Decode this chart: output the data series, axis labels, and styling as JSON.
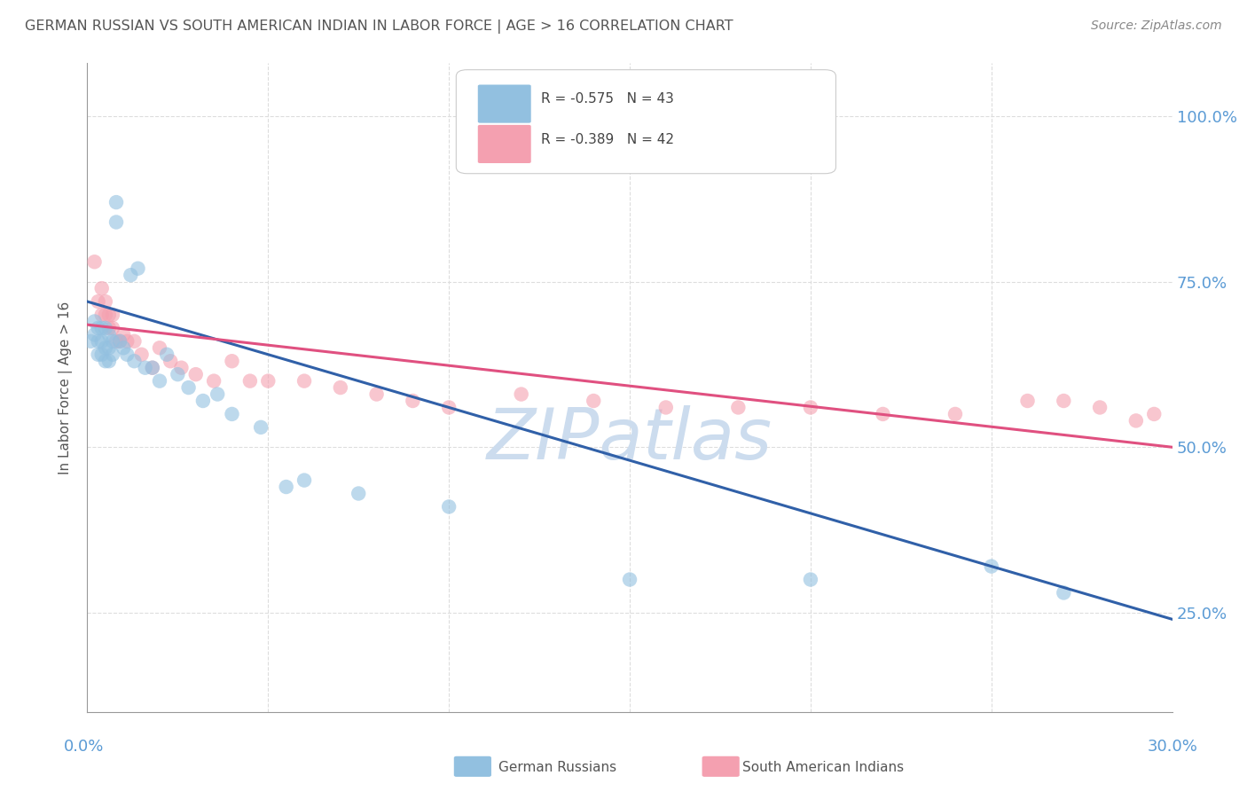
{
  "title": "GERMAN RUSSIAN VS SOUTH AMERICAN INDIAN IN LABOR FORCE | AGE > 16 CORRELATION CHART",
  "source_text": "Source: ZipAtlas.com",
  "ylabel": "In Labor Force | Age > 16",
  "legend_label_blue": "R = -0.575   N = 43",
  "legend_label_pink": "R = -0.389   N = 42",
  "legend_label_blue_box": "German Russians",
  "legend_label_pink_box": "South American Indians",
  "blue_color": "#92c0e0",
  "pink_color": "#f4a0b0",
  "blue_line_color": "#3060a8",
  "pink_line_color": "#e05080",
  "title_color": "#555555",
  "axis_color": "#999999",
  "grid_color": "#dddddd",
  "watermark_color": "#ccdcee",
  "right_tick_color": "#5b9bd5",
  "xlim": [
    0.0,
    0.3
  ],
  "ylim": [
    0.1,
    1.08
  ],
  "yticks": [
    0.25,
    0.5,
    0.75,
    1.0
  ],
  "ytick_labels": [
    "25.0%",
    "50.0%",
    "75.0%",
    "100.0%"
  ],
  "xtick_left_label": "0.0%",
  "xtick_right_label": "30.0%",
  "blue_line_x": [
    0.0,
    0.3
  ],
  "blue_line_y": [
    0.72,
    0.24
  ],
  "pink_line_x": [
    0.0,
    0.3
  ],
  "pink_line_y": [
    0.685,
    0.5
  ],
  "blue_scatter_x": [
    0.001,
    0.002,
    0.002,
    0.003,
    0.003,
    0.003,
    0.004,
    0.004,
    0.004,
    0.005,
    0.005,
    0.005,
    0.006,
    0.006,
    0.006,
    0.007,
    0.007,
    0.008,
    0.008,
    0.009,
    0.01,
    0.011,
    0.012,
    0.013,
    0.014,
    0.016,
    0.018,
    0.02,
    0.022,
    0.025,
    0.028,
    0.032,
    0.036,
    0.04,
    0.048,
    0.055,
    0.06,
    0.075,
    0.1,
    0.15,
    0.2,
    0.25,
    0.27
  ],
  "blue_scatter_y": [
    0.66,
    0.69,
    0.67,
    0.68,
    0.66,
    0.64,
    0.68,
    0.66,
    0.64,
    0.68,
    0.65,
    0.63,
    0.67,
    0.65,
    0.63,
    0.66,
    0.64,
    0.87,
    0.84,
    0.66,
    0.65,
    0.64,
    0.76,
    0.63,
    0.77,
    0.62,
    0.62,
    0.6,
    0.64,
    0.61,
    0.59,
    0.57,
    0.58,
    0.55,
    0.53,
    0.44,
    0.45,
    0.43,
    0.41,
    0.3,
    0.3,
    0.32,
    0.28
  ],
  "pink_scatter_x": [
    0.002,
    0.003,
    0.004,
    0.004,
    0.005,
    0.005,
    0.006,
    0.006,
    0.007,
    0.007,
    0.008,
    0.009,
    0.01,
    0.011,
    0.013,
    0.015,
    0.018,
    0.02,
    0.023,
    0.026,
    0.03,
    0.035,
    0.04,
    0.045,
    0.05,
    0.06,
    0.07,
    0.08,
    0.09,
    0.1,
    0.12,
    0.14,
    0.16,
    0.18,
    0.2,
    0.22,
    0.24,
    0.26,
    0.27,
    0.28,
    0.29,
    0.295
  ],
  "pink_scatter_y": [
    0.78,
    0.72,
    0.74,
    0.7,
    0.72,
    0.7,
    0.7,
    0.68,
    0.7,
    0.68,
    0.66,
    0.66,
    0.67,
    0.66,
    0.66,
    0.64,
    0.62,
    0.65,
    0.63,
    0.62,
    0.61,
    0.6,
    0.63,
    0.6,
    0.6,
    0.6,
    0.59,
    0.58,
    0.57,
    0.56,
    0.58,
    0.57,
    0.56,
    0.56,
    0.56,
    0.55,
    0.55,
    0.57,
    0.57,
    0.56,
    0.54,
    0.55
  ]
}
